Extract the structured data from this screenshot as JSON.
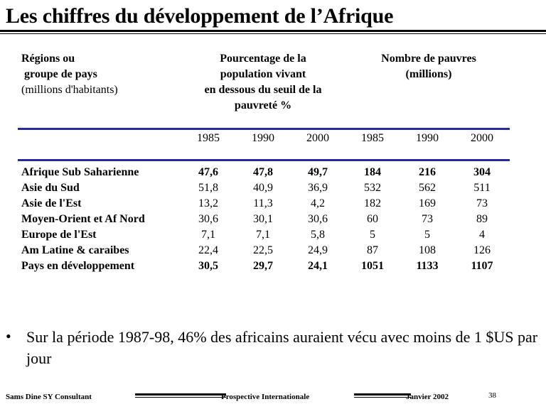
{
  "title": "Les chiffres du développement de l’Afrique",
  "header": {
    "col1": [
      "Régions ou",
      "groupe de pays",
      "(millions d'habitants)"
    ],
    "col2": [
      "Pourcentage de la",
      "population vivant",
      "en dessous du seuil de la",
      "pauvreté %"
    ],
    "col3": [
      "Nombre de pauvres",
      "(millions)"
    ]
  },
  "years": [
    "1985",
    "1990",
    "2000",
    "1985",
    "1990",
    "2000"
  ],
  "rows": [
    {
      "name": "Afrique Sub Saharienne",
      "values": [
        "47,6",
        "47,8",
        "49,7",
        "184",
        "216",
        "304"
      ],
      "bold": true
    },
    {
      "name": "Asie du Sud",
      "values": [
        "51,8",
        "40,9",
        "36,9",
        "532",
        "562",
        "511"
      ],
      "bold": false
    },
    {
      "name": "Asie de l'Est",
      "values": [
        "13,2",
        "11,3",
        "4,2",
        "182",
        "169",
        "73"
      ],
      "bold": false
    },
    {
      "name": "Moyen-Orient et Af Nord",
      "values": [
        "30,6",
        "30,1",
        "30,6",
        "60",
        "73",
        "89"
      ],
      "bold": false
    },
    {
      "name": "Europe de l'Est",
      "values": [
        "7,1",
        "7,1",
        "5,8",
        "5",
        "5",
        "4"
      ],
      "bold": false
    },
    {
      "name": "Am Latine & caraibes",
      "values": [
        "22,4",
        "22,5",
        "24,9",
        "87",
        "108",
        "126"
      ],
      "bold": false
    },
    {
      "name": "Pays en développement",
      "values": [
        "30,5",
        "29,7",
        "24,1",
        "1051",
        "1133",
        "1107"
      ],
      "bold": true
    }
  ],
  "bullet": {
    "symbol": "•",
    "text": "Sur la période 1987-98, 46% des africains auraient vécu avec moins de 1 $US par jour"
  },
  "footer": {
    "left": "Sams Dine SY Consultant",
    "center": "Prospective Internationale",
    "date": "Janvier 2002",
    "page": "38"
  },
  "colors": {
    "rule_blue": "#2a2aa0"
  }
}
